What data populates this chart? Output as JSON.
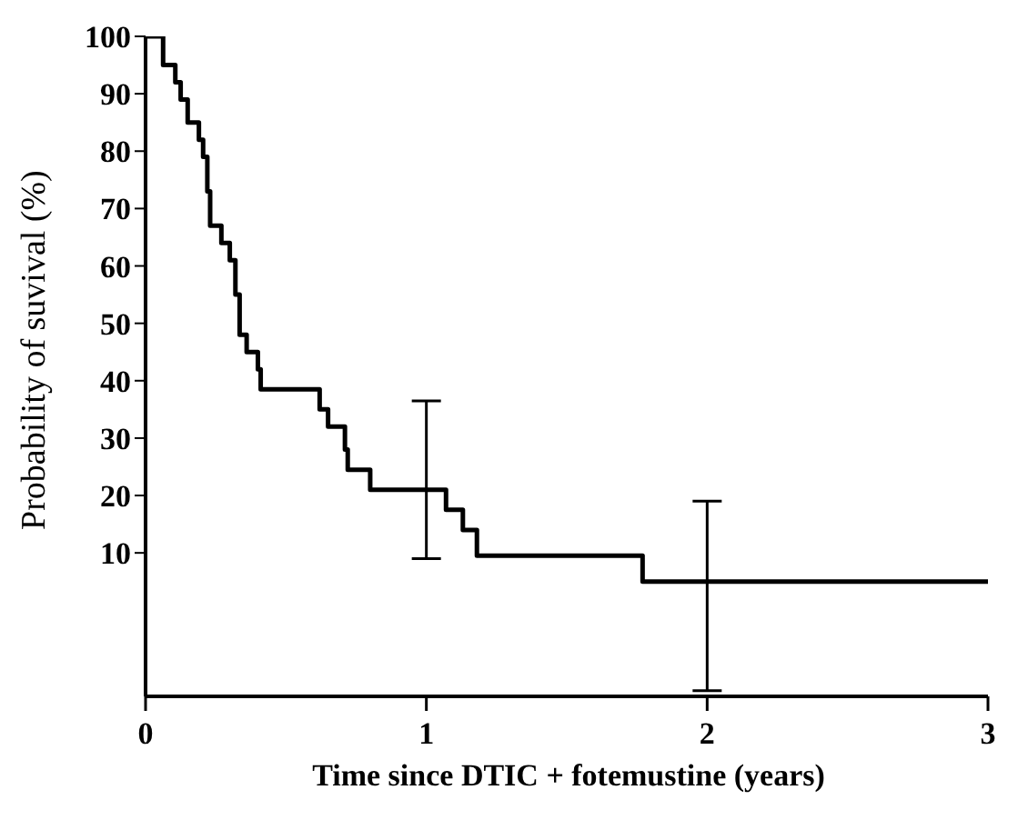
{
  "chart_data": {
    "type": "step",
    "xlabel": "Time since DTIC + fotemustine (years)",
    "ylabel": "Probability of suvival (%)",
    "x": [
      0,
      0.0625,
      0.106,
      0.125,
      0.15,
      0.19,
      0.205,
      0.22,
      0.23,
      0.27,
      0.3,
      0.32,
      0.335,
      0.36,
      0.4,
      0.41,
      0.62,
      0.65,
      0.71,
      0.72,
      0.8,
      1,
      1.07,
      1.13,
      1.18,
      1.77,
      2,
      3
    ],
    "series": [
      {
        "color": "#000000",
        "values": [
          100,
          95,
          92,
          89,
          85,
          82,
          79,
          73,
          67,
          64,
          61,
          55,
          48,
          45,
          42,
          38.5,
          35,
          32,
          28,
          24.5,
          21,
          21,
          17.5,
          14,
          9.5,
          5,
          5,
          5
        ],
        "errors": [
          null,
          null,
          null,
          null,
          null,
          null,
          null,
          null,
          null,
          null,
          null,
          null,
          null,
          null,
          null,
          null,
          null,
          null,
          null,
          null,
          null,
          [
            9,
            36.5
          ],
          null,
          null,
          null,
          null,
          [
            -14,
            19
          ],
          null
        ]
      }
    ],
    "xlim": [
      0,
      3
    ],
    "xticks": [
      0,
      1,
      2,
      3
    ],
    "ylim": [
      -15,
      100
    ],
    "yticks": [
      10,
      20,
      30,
      40,
      50,
      60,
      70,
      80,
      90,
      100
    ],
    "marker": "none",
    "line_style": "solid"
  }
}
